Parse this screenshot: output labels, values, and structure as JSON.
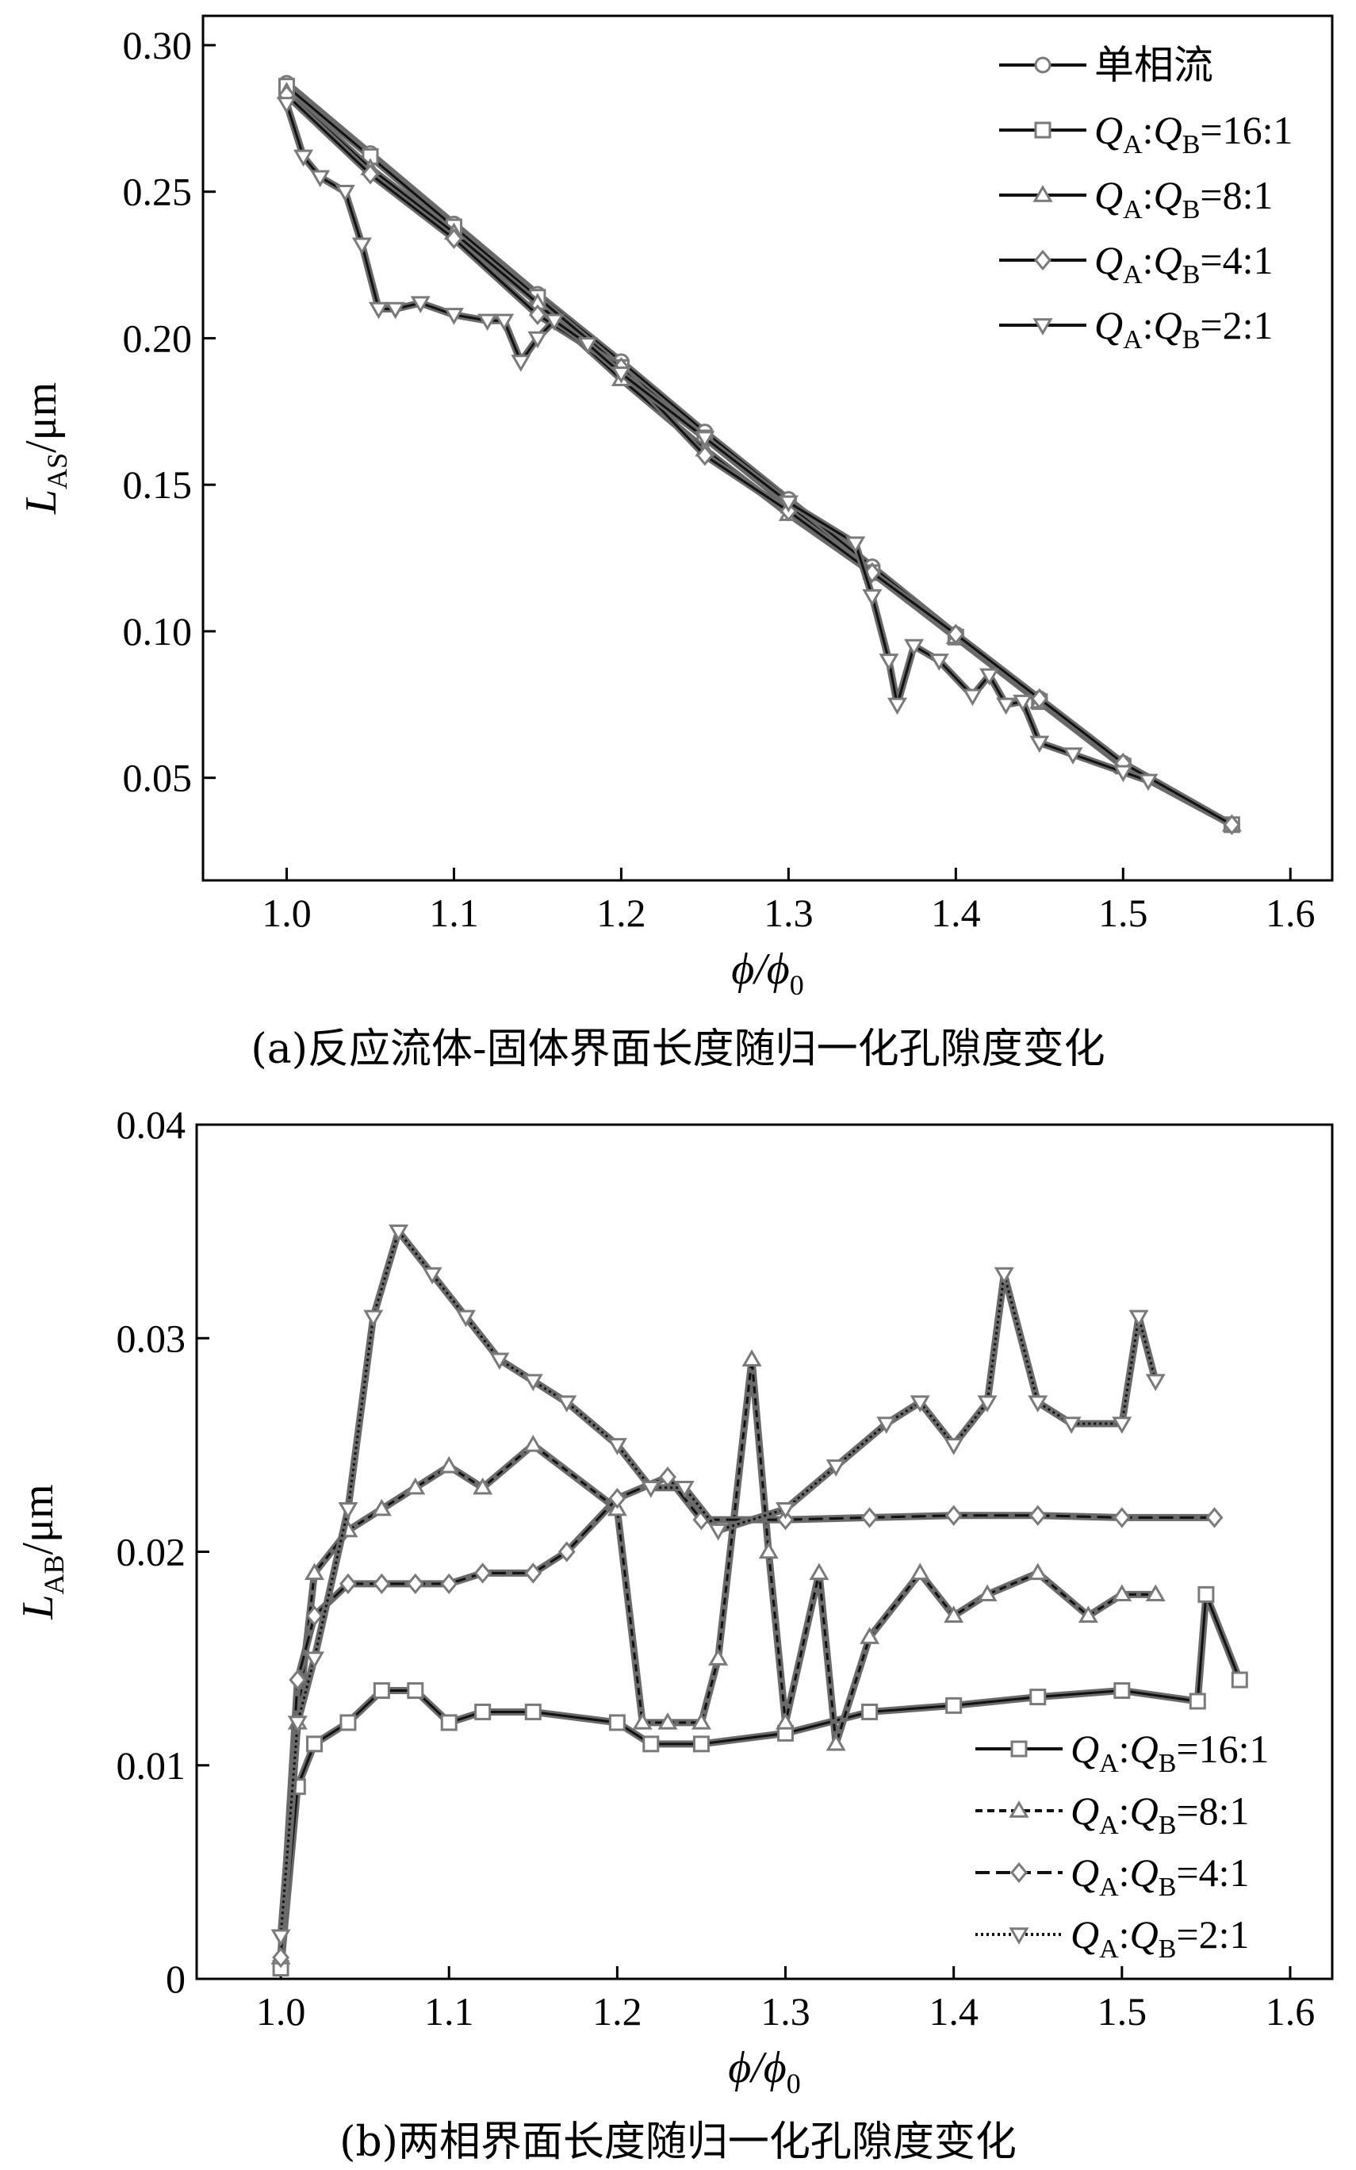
{
  "chart_data": [
    {
      "type": "line",
      "caption": "(a)反应流体-固体界面长度随归一化孔隙度变化",
      "xlabel": "ϕ/ϕ0",
      "ylabel": "LAS/μm",
      "xlabel_parts": {
        "main": "ϕ/ϕ",
        "sub": "0"
      },
      "ylabel_parts": {
        "main": "L",
        "sub": "AS",
        "unit": "/μm"
      },
      "xlim": [
        0.95,
        1.625
      ],
      "ylim": [
        0.015,
        0.31
      ],
      "xticks": [
        "1.0",
        "1.1",
        "1.2",
        "1.3",
        "1.4",
        "1.5",
        "1.6"
      ],
      "yticks": [
        "0.05",
        "0.10",
        "0.15",
        "0.20",
        "0.25",
        "0.30"
      ],
      "legend_position": "top-right",
      "series": [
        {
          "name": "单相流",
          "marker": "circle",
          "x": [
            1.0,
            1.05,
            1.1,
            1.15,
            1.2,
            1.25,
            1.3,
            1.35,
            1.4,
            1.45,
            1.5,
            1.565
          ],
          "y": [
            0.287,
            0.263,
            0.239,
            0.215,
            0.192,
            0.168,
            0.145,
            0.122,
            0.099,
            0.077,
            0.055,
            0.034
          ]
        },
        {
          "name": "QA:QB=16:1",
          "marker": "square",
          "x": [
            1.0,
            1.05,
            1.1,
            1.15,
            1.2,
            1.25,
            1.3,
            1.35,
            1.4,
            1.45,
            1.5,
            1.565
          ],
          "y": [
            0.286,
            0.262,
            0.238,
            0.214,
            0.19,
            0.166,
            0.143,
            0.12,
            0.098,
            0.076,
            0.054,
            0.034
          ]
        },
        {
          "name": "QA:QB=8:1",
          "marker": "triangle-up",
          "x": [
            1.0,
            1.05,
            1.1,
            1.15,
            1.2,
            1.25,
            1.3,
            1.35,
            1.4,
            1.45,
            1.5,
            1.565
          ],
          "y": [
            0.284,
            0.258,
            0.236,
            0.212,
            0.186,
            0.162,
            0.14,
            0.12,
            0.098,
            0.076,
            0.054,
            0.034
          ]
        },
        {
          "name": "QA:QB=4:1",
          "marker": "diamond",
          "x": [
            1.0,
            1.05,
            1.1,
            1.15,
            1.2,
            1.25,
            1.3,
            1.35,
            1.4,
            1.45,
            1.5,
            1.565
          ],
          "y": [
            0.283,
            0.256,
            0.234,
            0.208,
            0.19,
            0.16,
            0.141,
            0.12,
            0.099,
            0.077,
            0.055,
            0.034
          ]
        },
        {
          "name": "QA:QB=2:1",
          "marker": "triangle-down",
          "x": [
            1.0,
            1.01,
            1.02,
            1.035,
            1.045,
            1.055,
            1.065,
            1.08,
            1.1,
            1.12,
            1.13,
            1.14,
            1.15,
            1.16,
            1.18,
            1.2,
            1.25,
            1.3,
            1.34,
            1.35,
            1.36,
            1.365,
            1.375,
            1.39,
            1.41,
            1.42,
            1.43,
            1.44,
            1.45,
            1.47,
            1.5,
            1.515
          ],
          "y": [
            0.28,
            0.262,
            0.255,
            0.25,
            0.232,
            0.21,
            0.21,
            0.212,
            0.208,
            0.206,
            0.206,
            0.192,
            0.2,
            0.206,
            0.198,
            0.188,
            0.166,
            0.144,
            0.13,
            0.112,
            0.09,
            0.075,
            0.095,
            0.09,
            0.078,
            0.085,
            0.075,
            0.076,
            0.062,
            0.058,
            0.052,
            0.049
          ]
        }
      ]
    },
    {
      "type": "line",
      "caption": "(b)两相界面长度随归一化孔隙度变化",
      "xlabel": "ϕ/ϕ0",
      "ylabel": "LAB/μm",
      "xlabel_parts": {
        "main": "ϕ/ϕ",
        "sub": "0"
      },
      "ylabel_parts": {
        "main": "L",
        "sub": "AB",
        "unit": "/μm"
      },
      "xlim": [
        0.95,
        1.625
      ],
      "ylim": [
        0,
        0.04
      ],
      "xticks": [
        "1.0",
        "1.1",
        "1.2",
        "1.3",
        "1.4",
        "1.5",
        "1.6"
      ],
      "yticks": [
        "0",
        "0.01",
        "0.02",
        "0.03",
        "0.04"
      ],
      "legend_position": "bottom-right",
      "series": [
        {
          "name": "QA:QB=16:1",
          "marker": "square",
          "x": [
            1.0,
            1.01,
            1.02,
            1.04,
            1.06,
            1.08,
            1.1,
            1.12,
            1.15,
            1.2,
            1.22,
            1.25,
            1.3,
            1.35,
            1.4,
            1.45,
            1.5,
            1.545,
            1.55,
            1.57
          ],
          "y": [
            0.0005,
            0.009,
            0.011,
            0.012,
            0.0135,
            0.0135,
            0.012,
            0.0125,
            0.0125,
            0.012,
            0.011,
            0.011,
            0.0115,
            0.0125,
            0.0128,
            0.0132,
            0.0135,
            0.013,
            0.018,
            0.014
          ]
        },
        {
          "name": "QA:QB=8:1",
          "marker": "triangle-up",
          "x": [
            1.0,
            1.01,
            1.02,
            1.04,
            1.06,
            1.08,
            1.1,
            1.12,
            1.15,
            1.2,
            1.215,
            1.23,
            1.25,
            1.26,
            1.28,
            1.29,
            1.3,
            1.32,
            1.33,
            1.35,
            1.38,
            1.4,
            1.42,
            1.45,
            1.48,
            1.5,
            1.52
          ],
          "y": [
            0.001,
            0.012,
            0.019,
            0.021,
            0.022,
            0.023,
            0.024,
            0.023,
            0.025,
            0.022,
            0.012,
            0.012,
            0.012,
            0.015,
            0.029,
            0.02,
            0.012,
            0.019,
            0.011,
            0.016,
            0.019,
            0.017,
            0.018,
            0.019,
            0.017,
            0.018,
            0.018
          ]
        },
        {
          "name": "QA:QB=4:1",
          "marker": "diamond",
          "x": [
            1.0,
            1.01,
            1.02,
            1.04,
            1.06,
            1.08,
            1.1,
            1.12,
            1.15,
            1.17,
            1.2,
            1.23,
            1.25,
            1.3,
            1.35,
            1.4,
            1.45,
            1.5,
            1.555
          ],
          "y": [
            0.001,
            0.014,
            0.017,
            0.0185,
            0.0185,
            0.0185,
            0.0185,
            0.019,
            0.019,
            0.02,
            0.0225,
            0.0235,
            0.0215,
            0.0215,
            0.0216,
            0.0217,
            0.0217,
            0.0216,
            0.0216
          ]
        },
        {
          "name": "QA:QB=2:1",
          "marker": "triangle-down",
          "x": [
            1.0,
            1.01,
            1.02,
            1.04,
            1.055,
            1.07,
            1.09,
            1.11,
            1.13,
            1.15,
            1.17,
            1.2,
            1.22,
            1.24,
            1.26,
            1.3,
            1.33,
            1.36,
            1.38,
            1.4,
            1.42,
            1.43,
            1.45,
            1.47,
            1.5,
            1.51,
            1.52
          ],
          "y": [
            0.002,
            0.012,
            0.015,
            0.022,
            0.031,
            0.035,
            0.033,
            0.031,
            0.029,
            0.028,
            0.027,
            0.025,
            0.023,
            0.023,
            0.021,
            0.022,
            0.024,
            0.026,
            0.027,
            0.025,
            0.027,
            0.033,
            0.027,
            0.026,
            0.026,
            0.031,
            0.028
          ]
        }
      ]
    }
  ]
}
